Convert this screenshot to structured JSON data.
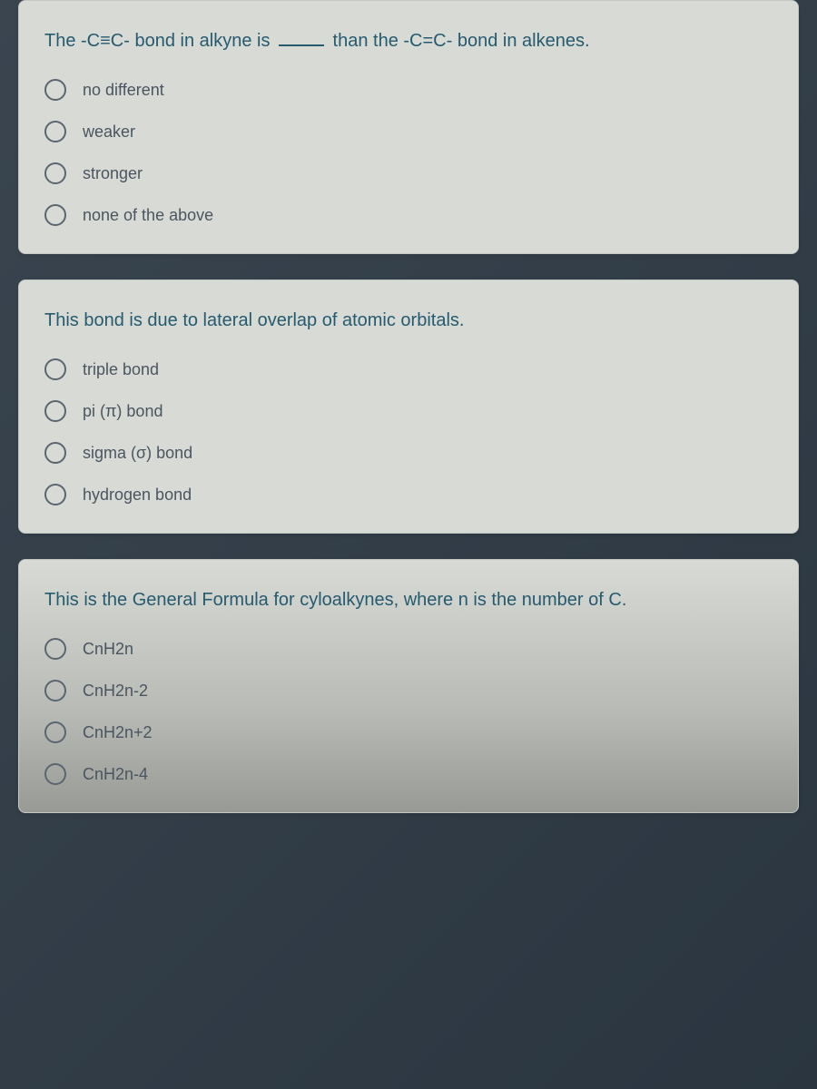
{
  "questions": [
    {
      "text_parts": [
        "The -C≡C- bond in alkyne is ",
        " than the -C=C- bond in alkenes."
      ],
      "has_blank": true,
      "options": [
        "no different",
        "weaker",
        "stronger",
        "none of the above"
      ]
    },
    {
      "text_parts": [
        "This bond is due to lateral overlap of atomic orbitals."
      ],
      "has_blank": false,
      "options": [
        "triple bond",
        "pi (π) bond",
        "sigma (σ) bond",
        "hydrogen bond"
      ]
    },
    {
      "text_parts": [
        "This is the General Formula for cyloalkynes, where n is the number of C."
      ],
      "has_blank": false,
      "options": [
        "CnH2n",
        "CnH2n-2",
        "CnH2n+2",
        "CnH2n-4"
      ]
    }
  ],
  "colors": {
    "card_bg": "#d8dbd5",
    "question_text": "#265a6e",
    "option_text": "#4a5560",
    "radio_border": "#5a6570",
    "page_bg": "#2a3540"
  }
}
